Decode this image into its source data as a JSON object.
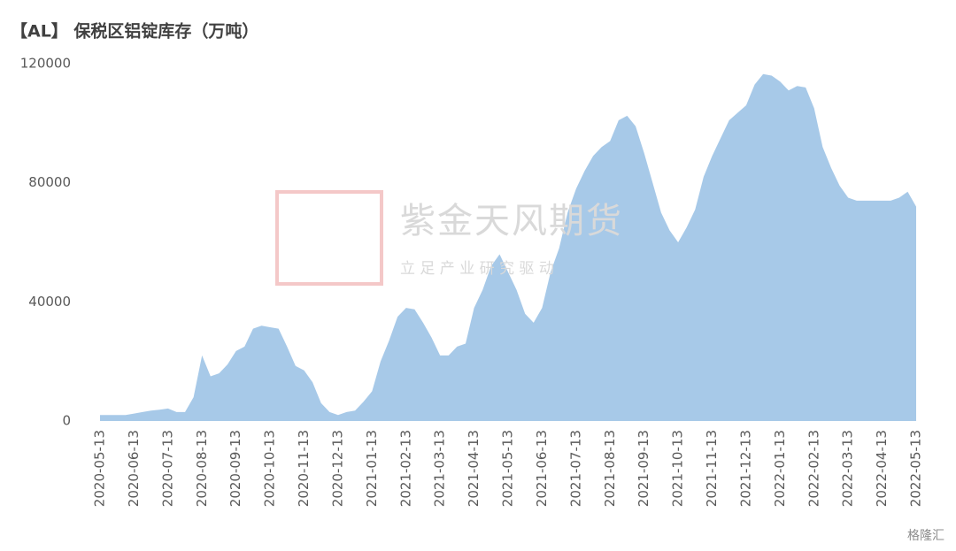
{
  "chart_data": {
    "type": "area",
    "title": "【AL】 保税区铝锭库存（万吨）",
    "watermark": [
      "紫金天风期货",
      "立 足 产 业 研 究 驱 动",
      "格隆汇"
    ],
    "categories": [
      "2020-05-13",
      null,
      null,
      null,
      "2020-06-13",
      null,
      null,
      null,
      "2020-07-13",
      null,
      null,
      null,
      "2020-08-13",
      null,
      null,
      null,
      "2020-09-13",
      null,
      null,
      null,
      "2020-10-13",
      null,
      null,
      null,
      "2020-11-13",
      null,
      null,
      null,
      "2020-12-13",
      null,
      null,
      null,
      "2021-01-13",
      null,
      null,
      null,
      "2021-02-13",
      null,
      null,
      null,
      "2021-03-13",
      null,
      null,
      null,
      "2021-04-13",
      null,
      null,
      null,
      "2021-05-13",
      null,
      null,
      null,
      "2021-06-13",
      null,
      null,
      null,
      "2021-07-13",
      null,
      null,
      null,
      "2021-08-13",
      null,
      null,
      null,
      "2021-09-13",
      null,
      null,
      null,
      "2021-10-13",
      null,
      null,
      null,
      "2021-11-13",
      null,
      null,
      null,
      "2021-12-13",
      null,
      null,
      null,
      "2022-01-13",
      null,
      null,
      null,
      "2022-02-13",
      null,
      null,
      null,
      "2022-03-13",
      null,
      null,
      null,
      "2022-04-13",
      null,
      null,
      null,
      "2022-05-13"
    ],
    "values": [
      2000,
      2000,
      2000,
      2000,
      2500,
      3000,
      3500,
      3800,
      4200,
      3000,
      3000,
      8000,
      22000,
      15000,
      16000,
      19000,
      23500,
      25000,
      31000,
      32000,
      31500,
      31000,
      25000,
      18500,
      17000,
      13000,
      6000,
      3000,
      2000,
      3000,
      3500,
      6500,
      10000,
      20000,
      27000,
      35000,
      38000,
      37500,
      33000,
      28000,
      22000,
      22000,
      25000,
      26000,
      38000,
      44000,
      52000,
      56000,
      50000,
      44000,
      36000,
      33000,
      38000,
      50000,
      58000,
      70000,
      78000,
      84000,
      89000,
      92000,
      94000,
      101000,
      102500,
      99000,
      90000,
      80000,
      70000,
      64000,
      60000,
      65000,
      71000,
      82000,
      89000,
      95000,
      101000,
      103500,
      106000,
      113000,
      116500,
      116000,
      114000,
      111000,
      112500,
      112000,
      105000,
      92000,
      85000,
      79000,
      75000,
      74000,
      74000,
      74000,
      74000,
      74000,
      75000,
      77000,
      72000
    ],
    "color": "#9dc3e6",
    "ylim": [
      0,
      120000
    ],
    "yticks": [
      0,
      40000,
      80000,
      120000
    ],
    "grid": false
  }
}
